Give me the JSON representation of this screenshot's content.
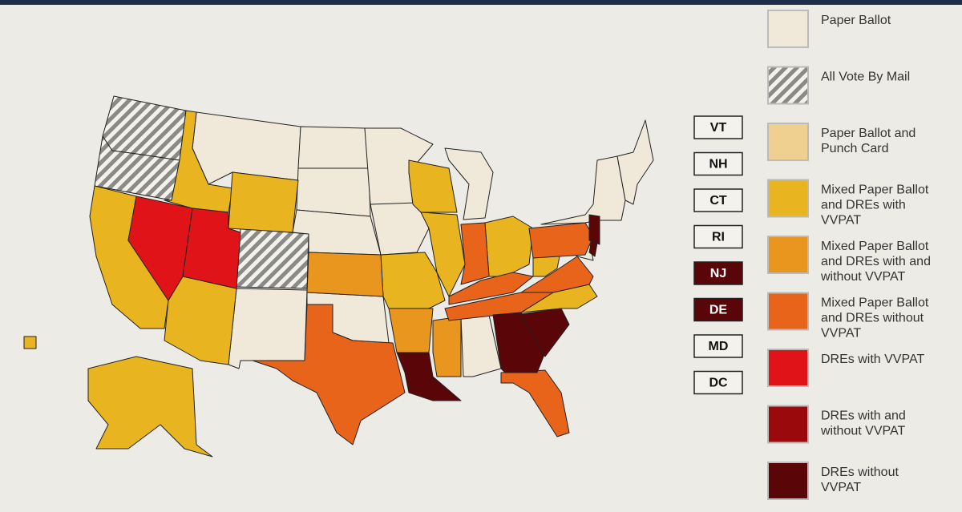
{
  "legend": [
    {
      "label": [
        "Paper Ballot"
      ]
    },
    {
      "label": [
        "All Vote By Mail"
      ]
    },
    {
      "label": [
        "Paper Ballot and",
        "Punch Card"
      ]
    },
    {
      "label": [
        "Mixed Paper Ballot",
        "and DREs with",
        "VVPAT"
      ]
    },
    {
      "label": [
        "Mixed Paper Ballot",
        "and DREs with and",
        "without VVPAT"
      ]
    },
    {
      "label": [
        "Mixed Paper Ballot",
        "and DREs without",
        "VVPAT"
      ]
    },
    {
      "label": [
        "DREs with VVPAT"
      ]
    },
    {
      "label": [
        "DREs with and",
        "without VVPAT"
      ]
    },
    {
      "label": [
        "DREs without",
        "VVPAT"
      ]
    }
  ],
  "state_labels": [
    {
      "label": "VT",
      "dark": false
    },
    {
      "label": "NH",
      "dark": false
    },
    {
      "label": "CT",
      "dark": false
    },
    {
      "label": "RI",
      "dark": false
    },
    {
      "label": "NJ",
      "dark": true
    },
    {
      "label": "DE",
      "dark": true
    },
    {
      "label": "MD",
      "dark": false
    },
    {
      "label": "DC",
      "dark": false
    }
  ]
}
